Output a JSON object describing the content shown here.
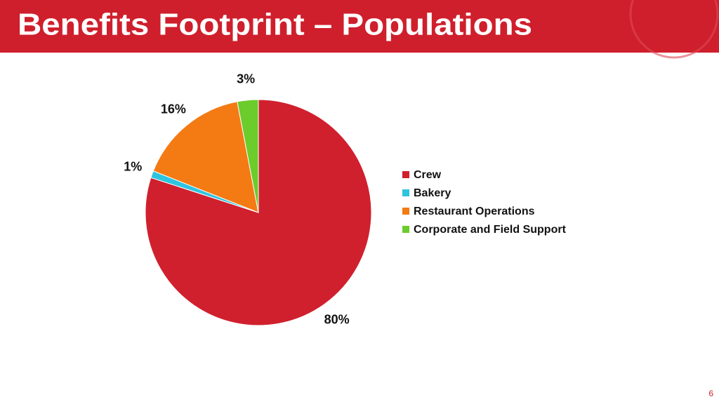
{
  "chart_data": {
    "type": "pie",
    "title": "Benefits Footprint – Populations",
    "categories": [
      "Crew",
      "Bakery",
      "Restaurant Operations",
      "Corporate and Field Support"
    ],
    "values": [
      80,
      1,
      16,
      3
    ],
    "value_labels": [
      "80%",
      "1%",
      "16%",
      "3%"
    ],
    "colors": [
      "#d0202e",
      "#2ec4e0",
      "#f47a14",
      "#6bcc2c"
    ]
  },
  "page_number": "6"
}
